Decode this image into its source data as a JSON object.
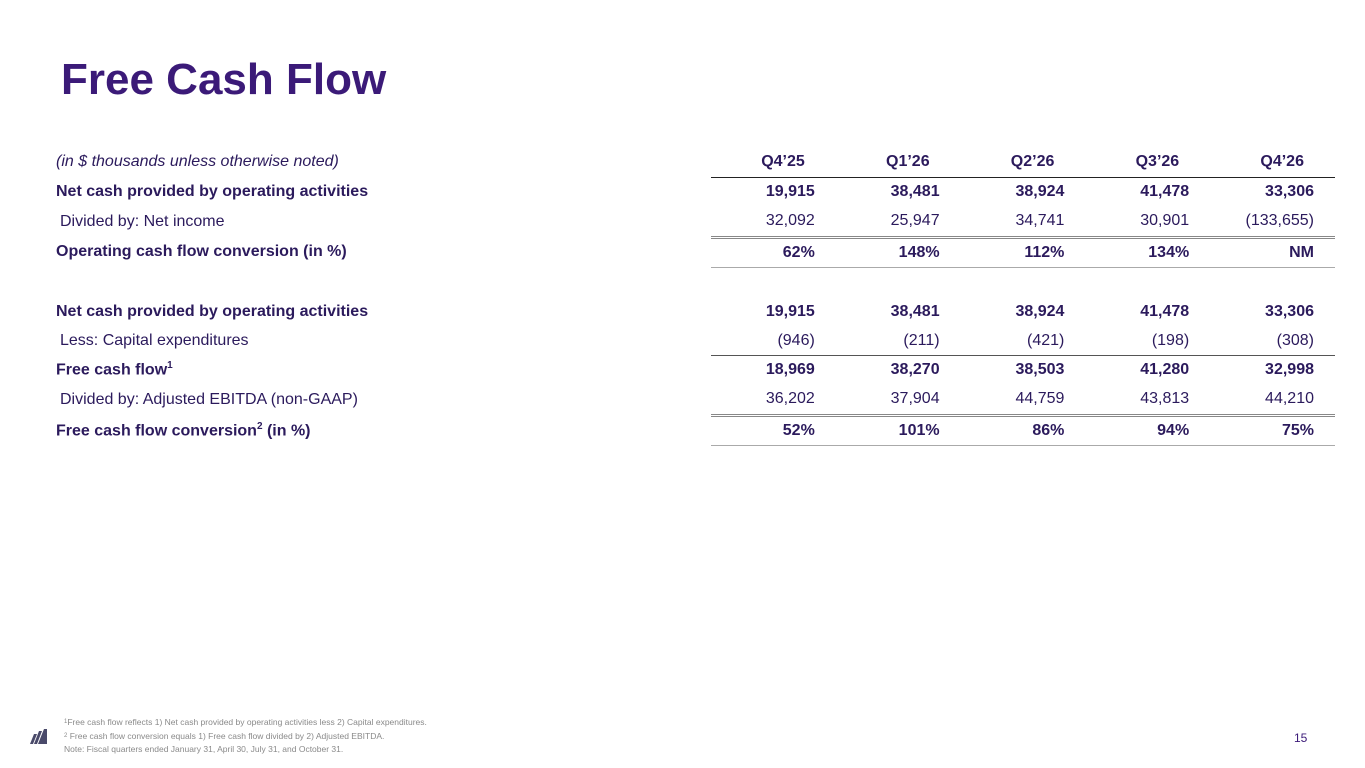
{
  "title": "Free Cash Flow",
  "table": {
    "units_note": "(in $ thousands unless otherwise noted)",
    "columns": [
      "Q4’25",
      "Q1’26",
      "Q2’26",
      "Q3’26",
      "Q4’26"
    ],
    "rows": [
      {
        "label": "Net cash provided by operating activities",
        "values": [
          "19,915",
          "38,481",
          "38,924",
          "41,478",
          "33,306"
        ]
      },
      {
        "label": "Divided by: Net income",
        "values": [
          "32,092",
          "25,947",
          "34,741",
          "30,901",
          "(133,655)"
        ]
      },
      {
        "label": "Operating cash flow conversion (in %)",
        "values": [
          "62%",
          "148%",
          "112%",
          "134%",
          "NM"
        ]
      },
      {
        "label": "Net cash provided by operating activities",
        "values": [
          "19,915",
          "38,481",
          "38,924",
          "41,478",
          "33,306"
        ]
      },
      {
        "label": "Less: Capital expenditures",
        "values": [
          "(946)",
          "(211)",
          "(421)",
          "(198)",
          "(308)"
        ]
      },
      {
        "label": "Free cash flow",
        "sup": "1",
        "values": [
          "18,969",
          "38,270",
          "38,503",
          "41,280",
          "32,998"
        ]
      },
      {
        "label": "Divided by: Adjusted EBITDA (non-GAAP)",
        "values": [
          "36,202",
          "37,904",
          "44,759",
          "43,813",
          "44,210"
        ]
      },
      {
        "label": "Free cash flow conversion",
        "sup": "2",
        "label_suffix": " (in %)",
        "values": [
          "52%",
          "101%",
          "86%",
          "94%",
          "75%"
        ]
      }
    ]
  },
  "footnotes": [
    {
      "sup": "1",
      "text": "Free cash flow reflects 1) Net cash provided by operating activities less 2) Capital expenditures."
    },
    {
      "sup": "2",
      "text": "Free cash flow conversion equals 1) Free cash flow divided by 2) Adjusted EBITDA."
    },
    {
      "sup": "",
      "text": "Note: Fiscal quarters ended January 31, April 30, July 31, and October 31."
    }
  ],
  "page_number": "15",
  "logo_icon": "company-logo-icon",
  "colors": {
    "title": "#3b1a78",
    "text": "#2b1a5c",
    "footnote": "#8a8a8a"
  }
}
